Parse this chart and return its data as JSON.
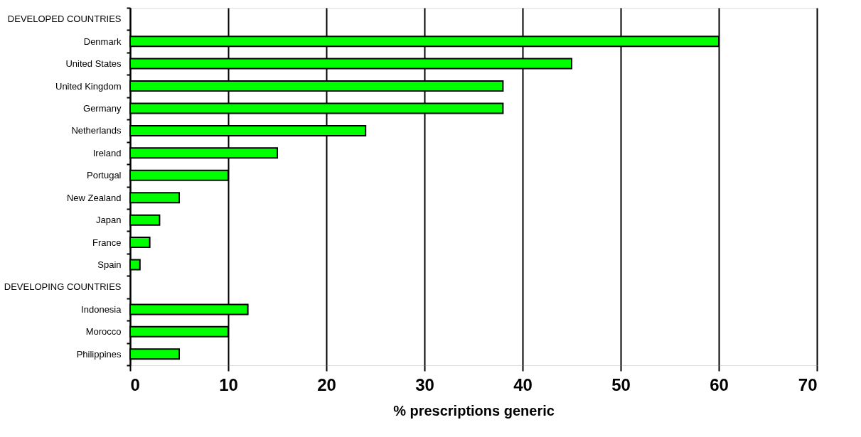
{
  "chart_data": {
    "type": "bar",
    "orientation": "horizontal",
    "xlabel": "% prescriptions generic",
    "categories": [
      "DEVELOPED COUNTRIES",
      "Denmark",
      "United States",
      "United Kingdom",
      "Germany",
      "Netherlands",
      "Ireland",
      "Portugal",
      "New Zealand",
      "Japan",
      "France",
      "Spain",
      "DEVELOPING COUNTRIES",
      "Indonesia",
      "Morocco",
      "Philippines"
    ],
    "values": [
      null,
      60,
      45,
      38,
      38,
      24,
      15,
      10,
      5,
      3,
      2,
      1,
      null,
      12,
      10,
      5
    ],
    "color": "#00ff00",
    "xlim": [
      0,
      70
    ],
    "xticks": [
      0,
      10,
      20,
      30,
      40,
      50,
      60,
      70
    ],
    "grid": "x"
  }
}
